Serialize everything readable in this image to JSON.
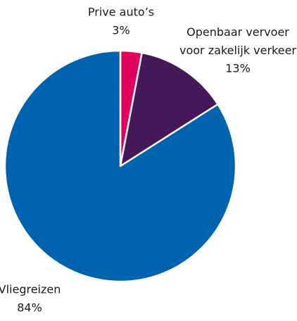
{
  "chart_data": {
    "type": "pie",
    "categories": [
      "Prive auto’s",
      "Openbaar vervoer voor zakelijk verkeer",
      "Vliegreizen"
    ],
    "values": [
      3,
      13,
      84
    ],
    "value_labels": [
      "3%",
      "13%",
      "84%"
    ],
    "colors": [
      "#e2005e",
      "#45185a",
      "#0063b0"
    ]
  }
}
